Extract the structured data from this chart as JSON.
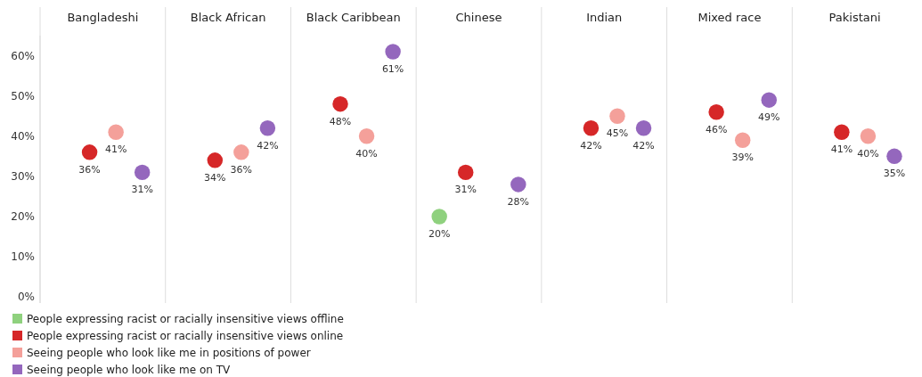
{
  "chart_data": {
    "type": "scatter",
    "categories": [
      "Bangladeshi",
      "Black African",
      "Black Caribbean",
      "Chinese",
      "Indian",
      "Mixed race",
      "Pakistani"
    ],
    "series": [
      {
        "name": "People expressing racist or racially insensitive views offline",
        "color": "#8fd17e",
        "values": [
          null,
          null,
          null,
          20,
          null,
          null,
          null
        ],
        "value_labels": [
          null,
          null,
          null,
          "20%",
          null,
          null,
          null
        ]
      },
      {
        "name": "People expressing racist or racially insensitive views online",
        "color": "#d62728",
        "values": [
          36,
          34,
          48,
          31,
          42,
          46,
          41
        ],
        "value_labels": [
          "36%",
          "34%",
          "48%",
          "31%",
          "42%",
          "46%",
          "41%"
        ]
      },
      {
        "name": "Seeing people who look like me in positions of power",
        "color": "#f4a09a",
        "values": [
          41,
          36,
          40,
          null,
          45,
          39,
          40
        ],
        "value_labels": [
          "41%",
          "36%",
          "40%",
          null,
          "45%",
          "39%",
          "40%"
        ]
      },
      {
        "name": "Seeing people who look like me on TV",
        "color": "#9467bd",
        "values": [
          31,
          42,
          61,
          28,
          42,
          49,
          35
        ],
        "value_labels": [
          "31%",
          "42%",
          "61%",
          "28%",
          "42%",
          "49%",
          "35%"
        ]
      }
    ],
    "ylim": [
      -1.5,
      65
    ],
    "yticks": [
      {
        "value": 0,
        "label": "0%"
      },
      {
        "value": 10,
        "label": "10%"
      },
      {
        "value": 20,
        "label": "20%"
      },
      {
        "value": 30,
        "label": "30%"
      },
      {
        "value": 40,
        "label": "40%"
      },
      {
        "value": 50,
        "label": "50%"
      },
      {
        "value": 60,
        "label": "60%"
      }
    ],
    "legend": "bottom left",
    "marker": "circle",
    "grid": false
  }
}
